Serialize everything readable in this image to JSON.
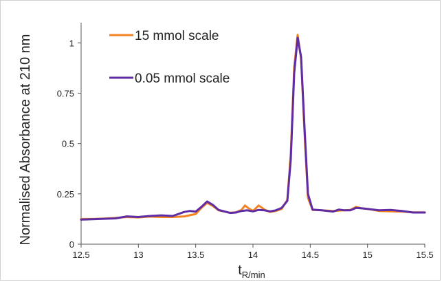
{
  "chart_data": {
    "type": "line",
    "title": "",
    "xlabel_main": "t",
    "xlabel_sub": "R/min",
    "ylabel": "Normalised Absorbance at 210 nm",
    "xlim": [
      12.5,
      15.5
    ],
    "ylim": [
      0,
      1.1
    ],
    "xticks": [
      "12.5",
      "13",
      "13.5",
      "14",
      "14.5",
      "15",
      "15.5"
    ],
    "yticks": [
      "0",
      "0.25",
      "0.5",
      "0.75",
      "1"
    ],
    "grid": false,
    "legend_position": "top-left",
    "series": [
      {
        "name": "15 mmol scale",
        "color": "#f58220",
        "points": [
          [
            12.5,
            0.125
          ],
          [
            12.6,
            0.125
          ],
          [
            12.7,
            0.127
          ],
          [
            12.8,
            0.13
          ],
          [
            12.9,
            0.135
          ],
          [
            13.0,
            0.133
          ],
          [
            13.1,
            0.137
          ],
          [
            13.2,
            0.135
          ],
          [
            13.3,
            0.135
          ],
          [
            13.4,
            0.138
          ],
          [
            13.5,
            0.15
          ],
          [
            13.55,
            0.18
          ],
          [
            13.6,
            0.205
          ],
          [
            13.65,
            0.19
          ],
          [
            13.7,
            0.168
          ],
          [
            13.8,
            0.156
          ],
          [
            13.85,
            0.158
          ],
          [
            13.9,
            0.17
          ],
          [
            13.93,
            0.192
          ],
          [
            13.97,
            0.175
          ],
          [
            14.0,
            0.165
          ],
          [
            14.05,
            0.192
          ],
          [
            14.1,
            0.172
          ],
          [
            14.15,
            0.16
          ],
          [
            14.2,
            0.165
          ],
          [
            14.25,
            0.175
          ],
          [
            14.3,
            0.22
          ],
          [
            14.33,
            0.45
          ],
          [
            14.36,
            0.88
          ],
          [
            14.39,
            1.04
          ],
          [
            14.42,
            0.92
          ],
          [
            14.45,
            0.55
          ],
          [
            14.48,
            0.23
          ],
          [
            14.52,
            0.17
          ],
          [
            14.6,
            0.168
          ],
          [
            14.7,
            0.165
          ],
          [
            14.8,
            0.168
          ],
          [
            14.85,
            0.17
          ],
          [
            14.9,
            0.185
          ],
          [
            14.95,
            0.178
          ],
          [
            15.0,
            0.175
          ],
          [
            15.1,
            0.165
          ],
          [
            15.2,
            0.163
          ],
          [
            15.3,
            0.162
          ],
          [
            15.4,
            0.158
          ],
          [
            15.5,
            0.158
          ]
        ]
      },
      {
        "name": "0.05 mmol scale",
        "color": "#5e2ca5",
        "points": [
          [
            12.5,
            0.122
          ],
          [
            12.6,
            0.124
          ],
          [
            12.7,
            0.126
          ],
          [
            12.8,
            0.128
          ],
          [
            12.9,
            0.138
          ],
          [
            13.0,
            0.135
          ],
          [
            13.1,
            0.14
          ],
          [
            13.2,
            0.143
          ],
          [
            13.3,
            0.14
          ],
          [
            13.4,
            0.16
          ],
          [
            13.45,
            0.165
          ],
          [
            13.5,
            0.162
          ],
          [
            13.55,
            0.185
          ],
          [
            13.6,
            0.212
          ],
          [
            13.65,
            0.195
          ],
          [
            13.7,
            0.17
          ],
          [
            13.8,
            0.155
          ],
          [
            13.85,
            0.157
          ],
          [
            13.9,
            0.165
          ],
          [
            13.95,
            0.168
          ],
          [
            14.0,
            0.163
          ],
          [
            14.05,
            0.17
          ],
          [
            14.1,
            0.168
          ],
          [
            14.15,
            0.163
          ],
          [
            14.2,
            0.168
          ],
          [
            14.25,
            0.18
          ],
          [
            14.3,
            0.215
          ],
          [
            14.33,
            0.42
          ],
          [
            14.36,
            0.85
          ],
          [
            14.39,
            1.025
          ],
          [
            14.42,
            0.93
          ],
          [
            14.45,
            0.58
          ],
          [
            14.48,
            0.25
          ],
          [
            14.52,
            0.172
          ],
          [
            14.6,
            0.168
          ],
          [
            14.7,
            0.162
          ],
          [
            14.75,
            0.172
          ],
          [
            14.8,
            0.168
          ],
          [
            14.85,
            0.168
          ],
          [
            14.9,
            0.18
          ],
          [
            14.95,
            0.178
          ],
          [
            15.0,
            0.175
          ],
          [
            15.1,
            0.168
          ],
          [
            15.2,
            0.17
          ],
          [
            15.3,
            0.165
          ],
          [
            15.4,
            0.157
          ],
          [
            15.5,
            0.157
          ]
        ]
      }
    ]
  }
}
